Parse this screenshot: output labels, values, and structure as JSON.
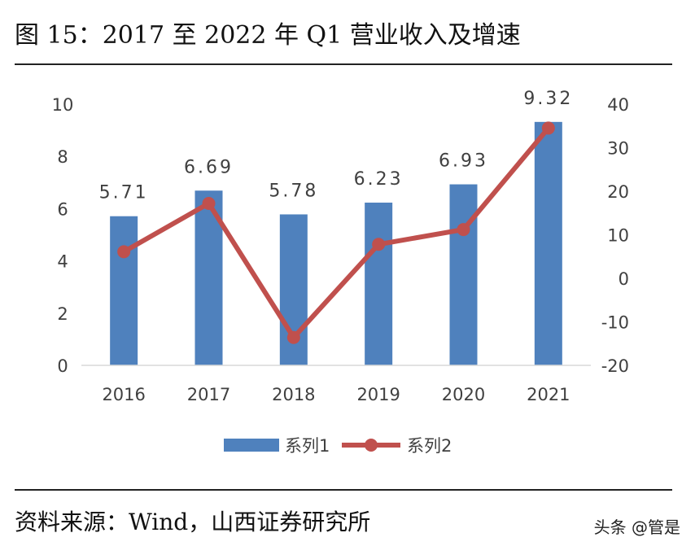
{
  "title": "图 15：2017 至 2022 年 Q1 营业收入及增速",
  "source": "资料来源：Wind，山西证券研究所",
  "watermark": "头条 @管是",
  "chart_data": {
    "type": "bar",
    "categories": [
      "2016",
      "2017",
      "2018",
      "2019",
      "2020",
      "2021"
    ],
    "series": [
      {
        "name": "系列1",
        "type": "bar",
        "axis": "left",
        "color": "#4f81bd",
        "values": [
          5.71,
          6.69,
          5.78,
          6.23,
          6.93,
          9.32
        ],
        "data_labels": [
          "5.71",
          "6.69",
          "5.78",
          "6.23",
          "6.93",
          "9.32"
        ]
      },
      {
        "name": "系列2",
        "type": "line",
        "axis": "right",
        "color": "#c0504d",
        "values": [
          6.1,
          17.2,
          -13.6,
          7.8,
          11.2,
          34.5
        ]
      }
    ],
    "y_left": {
      "range": [
        0,
        10
      ],
      "ticks": [
        "0",
        "2",
        "4",
        "6",
        "8",
        "10"
      ]
    },
    "y_right": {
      "range": [
        -20,
        40
      ],
      "ticks": [
        "-20",
        "-10",
        "0",
        "10",
        "20",
        "30",
        "40"
      ]
    },
    "grid": false,
    "legend_position": "bottom"
  }
}
